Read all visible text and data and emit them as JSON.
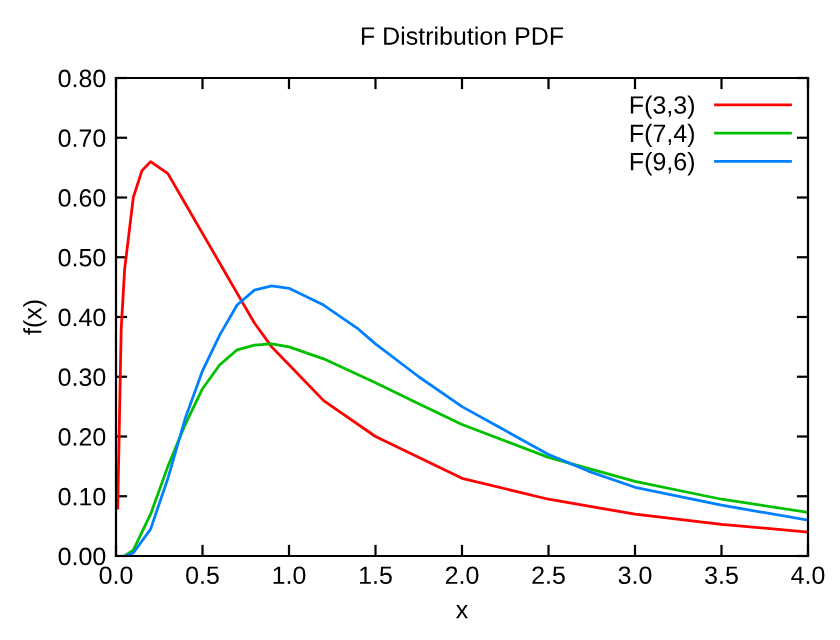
{
  "chart_data": {
    "type": "line",
    "title": "F Distribution PDF",
    "xlabel": "x",
    "ylabel": "f(x)",
    "xlim": [
      0,
      4
    ],
    "ylim": [
      0,
      0.8
    ],
    "xticks": [
      {
        "value": 0,
        "label": "0.0"
      },
      0.5,
      {
        "value": 1,
        "label": "1.0"
      },
      1.5,
      {
        "value": 2,
        "label": "2.0"
      },
      2.5,
      {
        "value": 3,
        "label": "3.0"
      },
      3.5,
      {
        "value": 4,
        "label": "4.0"
      }
    ],
    "yticks": [
      {
        "value": 0,
        "label": "0.00"
      },
      {
        "value": 0.1,
        "label": "0.10"
      },
      {
        "value": 0.2,
        "label": "0.20"
      },
      {
        "value": 0.3,
        "label": "0.30"
      },
      {
        "value": 0.4,
        "label": "0.40"
      },
      {
        "value": 0.5,
        "label": "0.50"
      },
      {
        "value": 0.6,
        "label": "0.60"
      },
      {
        "value": 0.7,
        "label": "0.70"
      },
      {
        "value": 0.8,
        "label": "0.80"
      }
    ],
    "grid": false,
    "legend": "top right",
    "marker": "none",
    "line_style": "solid",
    "series": [
      {
        "name": "F(3,3)",
        "color": "#ff0000",
        "x": [
          0.01,
          0.02,
          0.03,
          0.05,
          0.1,
          0.15,
          0.2,
          0.3,
          0.4,
          0.5,
          0.6,
          0.7,
          0.8,
          0.9,
          1.0,
          1.2,
          1.5,
          2.0,
          2.5,
          3.0,
          3.5,
          4.0
        ],
        "values": [
          0.08,
          0.23,
          0.38,
          0.48,
          0.6,
          0.645,
          0.66,
          0.64,
          0.59,
          0.54,
          0.49,
          0.44,
          0.39,
          0.35,
          0.32,
          0.26,
          0.2,
          0.13,
          0.095,
          0.07,
          0.053,
          0.04
        ]
      },
      {
        "name": "F(7,4)",
        "color": "#00c000",
        "x": [
          0.05,
          0.1,
          0.2,
          0.3,
          0.4,
          0.5,
          0.6,
          0.7,
          0.8,
          0.9,
          1.0,
          1.2,
          1.5,
          1.75,
          2.0,
          2.5,
          3.0,
          3.5,
          4.0
        ],
        "values": [
          0,
          0.01,
          0.07,
          0.15,
          0.22,
          0.28,
          0.32,
          0.345,
          0.353,
          0.355,
          0.35,
          0.33,
          0.29,
          0.255,
          0.22,
          0.165,
          0.125,
          0.095,
          0.073
        ]
      },
      {
        "name": "F(9,6)",
        "color": "#0080ff",
        "x": [
          0.05,
          0.1,
          0.2,
          0.3,
          0.4,
          0.5,
          0.6,
          0.7,
          0.8,
          0.9,
          1.0,
          1.2,
          1.4,
          1.5,
          1.75,
          2.0,
          2.25,
          2.5,
          2.75,
          3.0,
          3.5,
          4.0
        ],
        "values": [
          0,
          0.005,
          0.045,
          0.13,
          0.23,
          0.31,
          0.37,
          0.42,
          0.445,
          0.452,
          0.448,
          0.42,
          0.38,
          0.355,
          0.3,
          0.25,
          0.21,
          0.17,
          0.14,
          0.115,
          0.085,
          0.06
        ]
      }
    ]
  }
}
